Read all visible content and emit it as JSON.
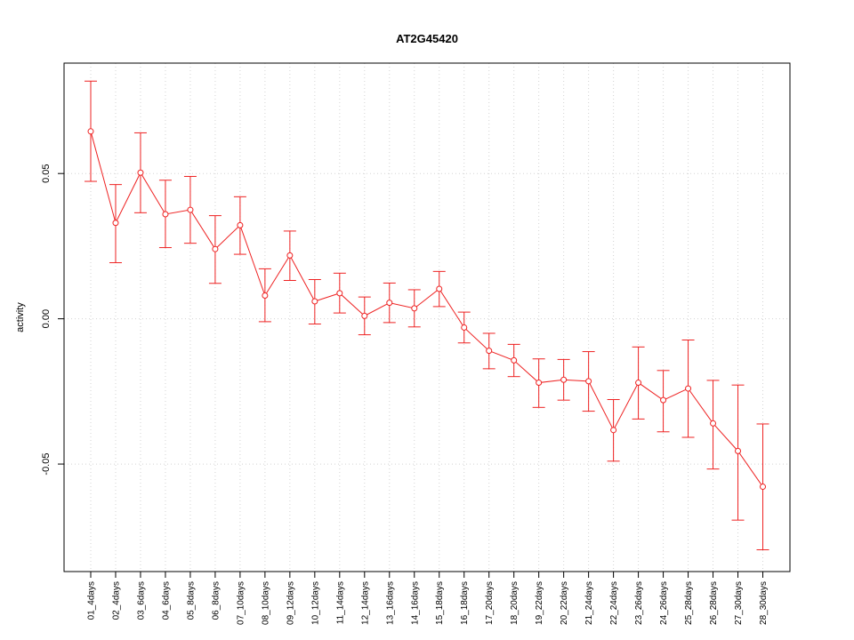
{
  "chart_data": {
    "type": "line",
    "title": "AT2G45420",
    "xlabel": "",
    "ylabel": "activity",
    "ylim": [
      -0.087,
      0.088
    ],
    "yticks": [
      -0.05,
      0.0,
      0.05
    ],
    "ytick_labels": [
      "-0.05",
      "0.00",
      "0.05"
    ],
    "grid": true,
    "color": "#ee2222",
    "categories": [
      "01_4days",
      "02_4days",
      "03_6days",
      "04_6days",
      "05_8days",
      "06_8days",
      "07_10days",
      "08_10days",
      "09_12days",
      "10_12days",
      "11_14days",
      "12_14days",
      "13_16days",
      "14_16days",
      "15_18days",
      "16_18days",
      "17_20days",
      "18_20days",
      "19_22days",
      "20_22days",
      "21_24days",
      "22_24days",
      "23_26days",
      "24_26days",
      "25_28days",
      "26_28days",
      "27_30days",
      "28_30days"
    ],
    "series": [
      {
        "values": [
          0.0645,
          0.033,
          0.0503,
          0.036,
          0.0375,
          0.024,
          0.0322,
          0.008,
          0.0218,
          0.006,
          0.0088,
          0.001,
          0.0055,
          0.0036,
          0.0103,
          -0.003,
          -0.011,
          -0.0143,
          -0.022,
          -0.021,
          -0.0215,
          -0.0383,
          -0.022,
          -0.028,
          -0.024,
          -0.036,
          -0.0455,
          -0.0578
        ],
        "lower": [
          0.0473,
          0.0193,
          0.0365,
          0.0245,
          0.026,
          0.0122,
          0.0222,
          -0.001,
          0.0132,
          -0.0018,
          0.002,
          -0.0055,
          -0.0013,
          -0.0028,
          0.0042,
          -0.0083,
          -0.0172,
          -0.0199,
          -0.0305,
          -0.028,
          -0.0318,
          -0.049,
          -0.0345,
          -0.0389,
          -0.0408,
          -0.0517,
          -0.0693,
          -0.0795
        ],
        "upper": [
          0.0818,
          0.0462,
          0.064,
          0.0477,
          0.049,
          0.0355,
          0.042,
          0.0172,
          0.0302,
          0.0135,
          0.0157,
          0.0075,
          0.0123,
          0.01,
          0.0163,
          0.0023,
          -0.005,
          -0.0088,
          -0.0138,
          -0.014,
          -0.0113,
          -0.0278,
          -0.0097,
          -0.0178,
          -0.0073,
          -0.0212,
          -0.0228,
          -0.0362
        ]
      }
    ]
  }
}
